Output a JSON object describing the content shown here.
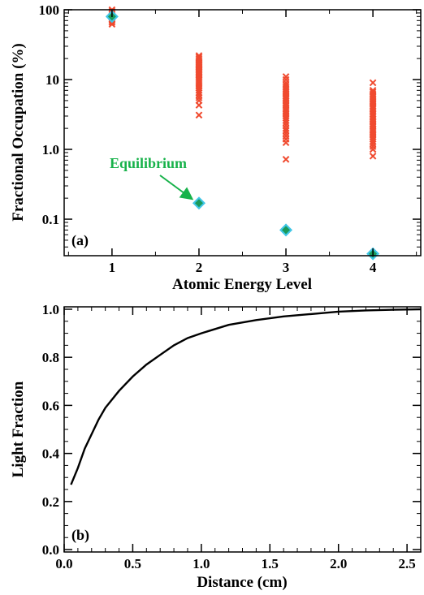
{
  "chart_data": [
    {
      "panel_label": "(a)",
      "type": "scatter",
      "xlabel": "Atomic Energy Level",
      "ylabel": "Fractional Occupation (%)",
      "xlim": [
        0.45,
        4.55
      ],
      "ylim": [
        0.03,
        100
      ],
      "y_scale": "log",
      "x_ticks": [
        "1",
        "2",
        "3",
        "4"
      ],
      "x_tick_values": [
        1,
        2,
        3,
        4
      ],
      "y_ticks": [
        "100",
        "10",
        "1.0",
        "0.1"
      ],
      "y_tick_values": [
        100,
        10,
        1.0,
        0.1
      ],
      "grid": false,
      "colors": {
        "samples": "#f04a2f",
        "equilibrium_fill": "#1a9a5a",
        "equilibrium_edge": "#3fc6e6",
        "annotation": "#17b24a"
      },
      "annotation": {
        "text": "Equilibrium",
        "points_to": [
          2,
          0.17
        ]
      },
      "series": [
        {
          "marker": "x",
          "values": [
            {
              "x": 1,
              "y": [
                62,
                66,
                70,
                74,
                78,
                82,
                86,
                90,
                95,
                100
              ]
            },
            {
              "x": 2,
              "y": [
                3.1,
                4.3,
                5.0,
                5.5,
                6.0,
                6.5,
                7.0,
                7.5,
                8.0,
                8.5,
                9.0,
                9.5,
                10,
                10.5,
                11,
                11.5,
                12,
                12.5,
                13,
                13.5,
                14,
                14.5,
                15,
                15.5,
                16,
                16.5,
                17,
                17.5,
                18,
                19,
                20,
                21,
                22
              ]
            },
            {
              "x": 3,
              "y": [
                0.72,
                1.25,
                1.4,
                1.55,
                1.7,
                1.85,
                2.0,
                2.2,
                2.4,
                2.6,
                2.8,
                3.0,
                3.2,
                3.4,
                3.6,
                3.8,
                4.0,
                4.3,
                4.6,
                4.9,
                5.2,
                5.5,
                5.8,
                6.2,
                6.6,
                7.0,
                7.4,
                7.8,
                8.3,
                9.0,
                10,
                11
              ]
            },
            {
              "x": 4,
              "y": [
                0.8,
                1.0,
                1.1,
                1.2,
                1.3,
                1.4,
                1.5,
                1.6,
                1.7,
                1.8,
                1.9,
                2.0,
                2.15,
                2.3,
                2.45,
                2.6,
                2.75,
                2.9,
                3.05,
                3.2,
                3.4,
                3.6,
                3.8,
                4.0,
                4.2,
                4.5,
                4.8,
                5.1,
                5.4,
                5.8,
                6.2,
                6.6,
                7.0,
                9.0
              ]
            }
          ]
        },
        {
          "marker": "diamond",
          "values": [
            {
              "x": 1,
              "y": 80
            },
            {
              "x": 2,
              "y": 0.17
            },
            {
              "x": 3,
              "y": 0.07
            },
            {
              "x": 4,
              "y": 0.032
            }
          ]
        }
      ]
    },
    {
      "panel_label": "(b)",
      "type": "line",
      "xlabel": "Distance (cm)",
      "ylabel": "Light Fraction",
      "xlim": [
        0.0,
        2.6
      ],
      "ylim": [
        -0.01,
        1.01
      ],
      "x_ticks": [
        "0.0",
        "0.5",
        "1.0",
        "1.5",
        "2.0",
        "2.5"
      ],
      "x_tick_values": [
        0.0,
        0.5,
        1.0,
        1.5,
        2.0,
        2.5
      ],
      "y_ticks": [
        "0.0",
        "0.2",
        "0.4",
        "0.6",
        "0.8",
        "1.0"
      ],
      "y_tick_values": [
        0.0,
        0.2,
        0.4,
        0.6,
        0.8,
        1.0
      ],
      "grid": false,
      "series": [
        {
          "color": "#000000",
          "x": [
            0.05,
            0.1,
            0.15,
            0.2,
            0.25,
            0.3,
            0.4,
            0.5,
            0.6,
            0.7,
            0.8,
            0.9,
            1.0,
            1.2,
            1.4,
            1.6,
            1.8,
            2.0,
            2.2,
            2.4,
            2.6
          ],
          "y": [
            0.27,
            0.34,
            0.42,
            0.48,
            0.54,
            0.59,
            0.66,
            0.72,
            0.77,
            0.81,
            0.85,
            0.88,
            0.9,
            0.935,
            0.955,
            0.97,
            0.98,
            0.99,
            0.995,
            0.998,
            1.0
          ]
        }
      ]
    }
  ]
}
